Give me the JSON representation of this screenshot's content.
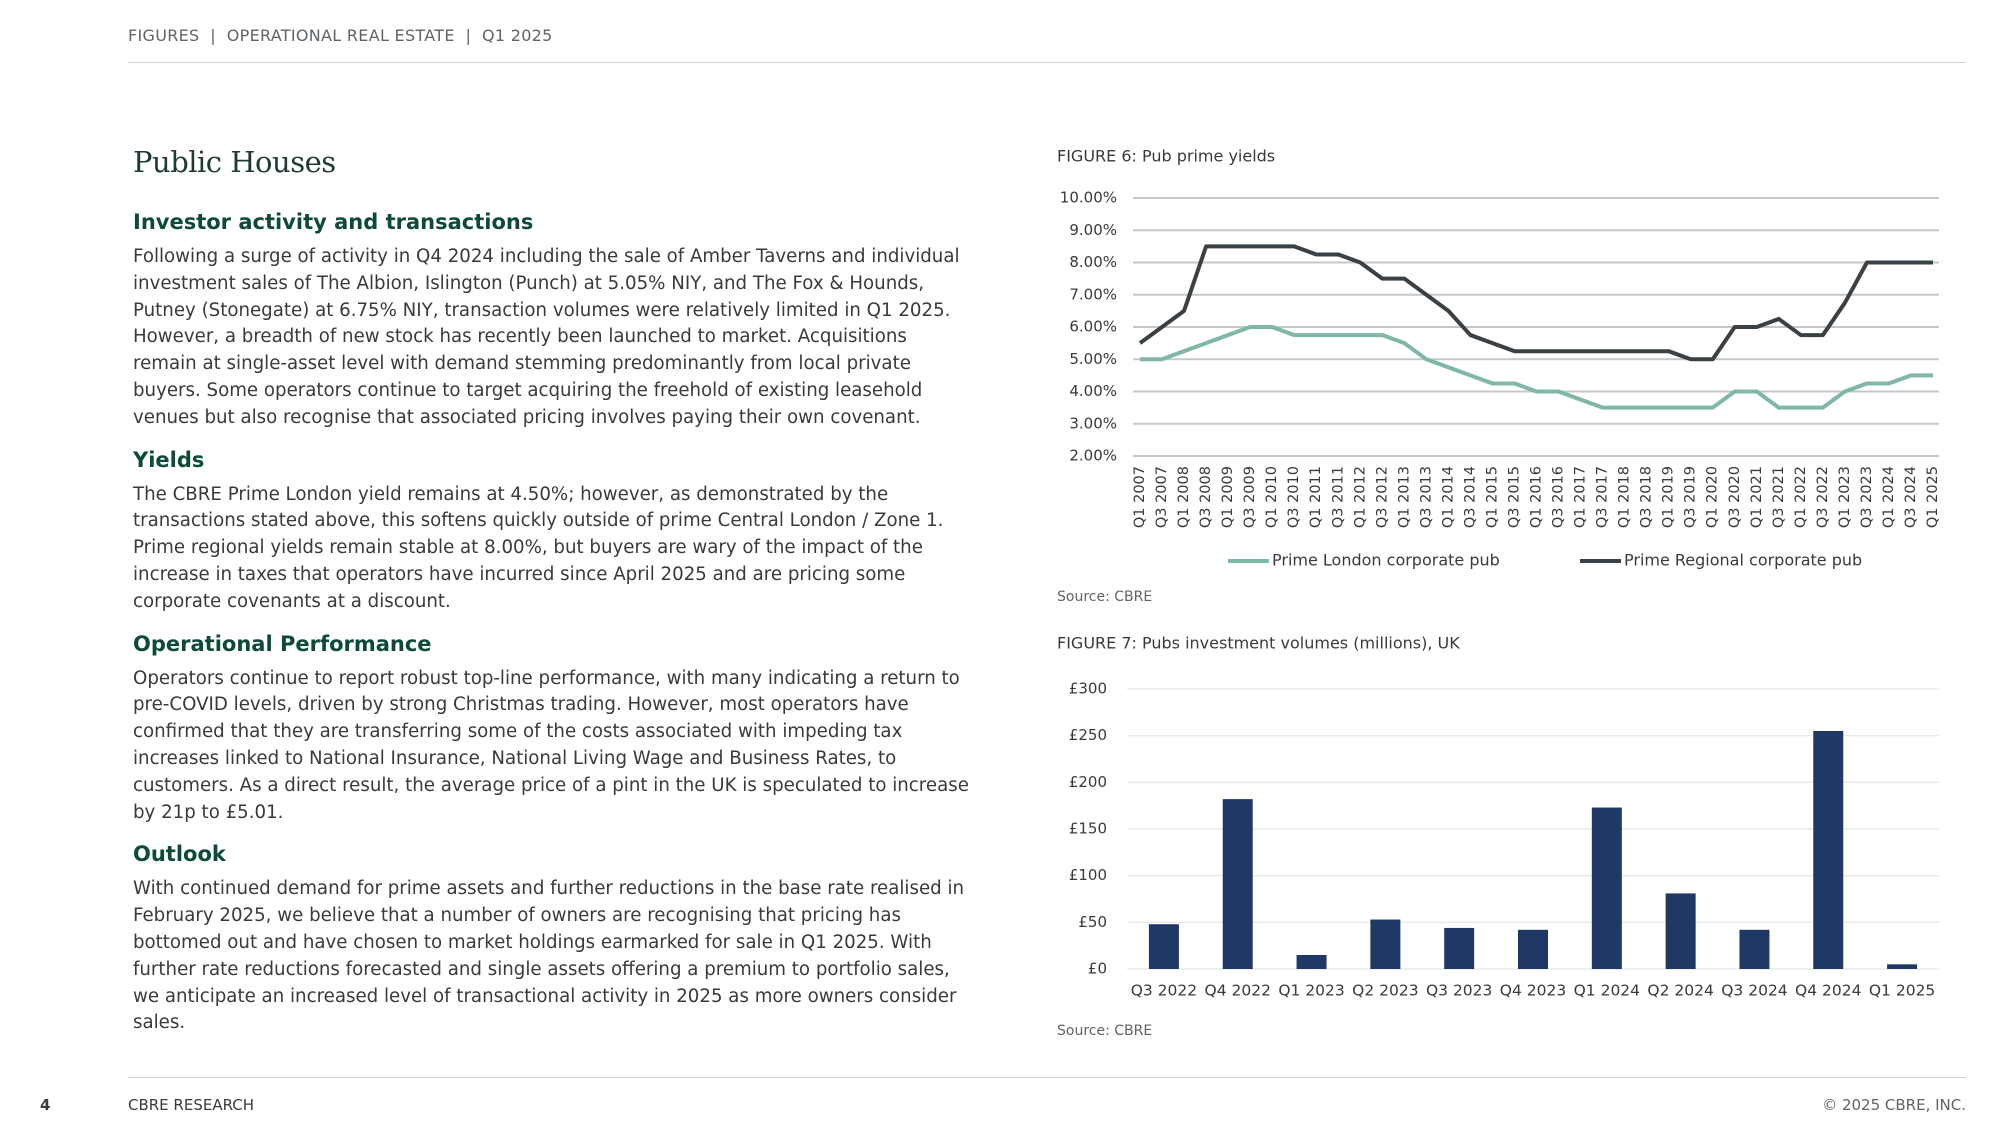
{
  "header": {
    "text": "FIGURES  |  OPERATIONAL REAL ESTATE  |  Q1 2025"
  },
  "article": {
    "title": "Public Houses",
    "sections": [
      {
        "heading": "Investor activity and transactions",
        "body": "Following a surge of activity in Q4 2024 including the sale of Amber Taverns and individual investment sales of The Albion, Islington (Punch) at 5.05% NIY, and The Fox & Hounds, Putney (Stonegate) at 6.75% NIY, transaction volumes were relatively limited in Q1 2025. However, a breadth of new stock has recently been launched to market. Acquisitions remain at single-asset level with demand stemming predominantly from local private buyers. Some operators continue to target acquiring the freehold of existing leasehold venues but also recognise that associated pricing involves paying their own covenant."
      },
      {
        "heading": "Yields",
        "body": "The CBRE Prime London yield remains at 4.50%; however, as demonstrated by the transactions stated above, this softens quickly outside of prime Central London / Zone 1. Prime regional yields remain stable at 8.00%, but buyers are wary of the impact of the increase in taxes that operators have incurred since April 2025 and are pricing some corporate covenants at a discount."
      },
      {
        "heading": "Operational Performance",
        "body": "Operators continue to report robust top-line performance, with many indicating a return to pre-COVID levels, driven by strong Christmas trading. However, most operators have confirmed that they are transferring some of the costs associated with impeding tax increases linked to National Insurance, National Living Wage and Business Rates, to customers. As a direct result, the average price of a pint in the UK is speculated to increase by 21p to £5.01."
      },
      {
        "heading": "Outlook",
        "body": "With continued demand for prime assets and further reductions in the base rate realised in February 2025, we believe that a number of owners are recognising that pricing has bottomed out and have chosen to market holdings earmarked for sale in Q1 2025. With further rate reductions forecasted and single assets offering a premium to portfolio sales, we anticipate an increased level of transactional activity in 2025 as more owners consider sales."
      }
    ]
  },
  "chart_data": [
    {
      "type": "line",
      "title": "FIGURE 6: Pub prime yields",
      "source": "Source: CBRE",
      "categories": [
        "Q1 2007",
        "Q3 2007",
        "Q1 2008",
        "Q3 2008",
        "Q1 2009",
        "Q3 2009",
        "Q1 2010",
        "Q3 2010",
        "Q1 2011",
        "Q3 2011",
        "Q1 2012",
        "Q3 2012",
        "Q1 2013",
        "Q3 2013",
        "Q1 2014",
        "Q3 2014",
        "Q1 2015",
        "Q3 2015",
        "Q1 2016",
        "Q3 2016",
        "Q1 2017",
        "Q3 2017",
        "Q1 2018",
        "Q3 2018",
        "Q1 2019",
        "Q3 2019",
        "Q1 2020",
        "Q3 2020",
        "Q1 2021",
        "Q3 2021",
        "Q1 2022",
        "Q3 2022",
        "Q1 2023",
        "Q3 2023",
        "Q1 2024",
        "Q3 2024",
        "Q1 2025"
      ],
      "series": [
        {
          "name": "Prime London corporate pub",
          "color": "#7fb8a8",
          "values": [
            5.0,
            5.0,
            5.25,
            5.5,
            5.75,
            6.0,
            6.0,
            5.75,
            5.75,
            5.75,
            5.75,
            5.75,
            5.5,
            5.0,
            4.75,
            4.5,
            4.25,
            4.25,
            4.0,
            4.0,
            3.75,
            3.5,
            3.5,
            3.5,
            3.5,
            3.5,
            3.5,
            4.0,
            4.0,
            3.5,
            3.5,
            3.5,
            4.0,
            4.25,
            4.25,
            4.5,
            4.5
          ]
        },
        {
          "name": "Prime Regional corporate pub",
          "color": "#3a4043",
          "values": [
            5.5,
            6.0,
            6.5,
            8.5,
            8.5,
            8.5,
            8.5,
            8.5,
            8.25,
            8.25,
            8.0,
            7.5,
            7.5,
            7.0,
            6.5,
            5.75,
            5.5,
            5.25,
            5.25,
            5.25,
            5.25,
            5.25,
            5.25,
            5.25,
            5.25,
            5.0,
            5.0,
            6.0,
            6.0,
            6.25,
            5.75,
            5.75,
            6.75,
            8.0,
            8.0,
            8.0,
            8.0
          ]
        }
      ],
      "ylim": [
        2,
        10
      ],
      "yticks": [
        {
          "value": 2,
          "label": "2.00%"
        },
        {
          "value": 3,
          "label": "3.00%"
        },
        {
          "value": 4,
          "label": "4.00%"
        },
        {
          "value": 5,
          "label": "5.00%"
        },
        {
          "value": 6,
          "label": "6.00%"
        },
        {
          "value": 7,
          "label": "7.00%"
        },
        {
          "value": 8,
          "label": "8.00%"
        },
        {
          "value": 9,
          "label": "9.00%"
        },
        {
          "value": 10,
          "label": "10.00%"
        }
      ],
      "grid": true,
      "legend": "bottom"
    },
    {
      "type": "bar",
      "title": "FIGURE 7: Pubs investment volumes (millions), UK",
      "source": "Source: CBRE",
      "categories": [
        "Q3 2022",
        "Q4 2022",
        "Q1 2023",
        "Q2 2023",
        "Q3 2023",
        "Q4 2023",
        "Q1 2024",
        "Q2 2024",
        "Q3 2024",
        "Q4 2024",
        "Q1 2025"
      ],
      "values": [
        48,
        182,
        15,
        53,
        44,
        42,
        173,
        81,
        42,
        255,
        5
      ],
      "color": "#1f3864",
      "ylim": [
        0,
        300
      ],
      "yticks": [
        {
          "value": 0,
          "label": "£0"
        },
        {
          "value": 50,
          "label": "£50"
        },
        {
          "value": 100,
          "label": "£100"
        },
        {
          "value": 150,
          "label": "£150"
        },
        {
          "value": 200,
          "label": "£200"
        },
        {
          "value": 250,
          "label": "£250"
        },
        {
          "value": 300,
          "label": "£300"
        }
      ],
      "grid": true
    }
  ],
  "footer": {
    "page": "4",
    "left": "CBRE RESEARCH",
    "right": "© 2025 CBRE, INC."
  }
}
